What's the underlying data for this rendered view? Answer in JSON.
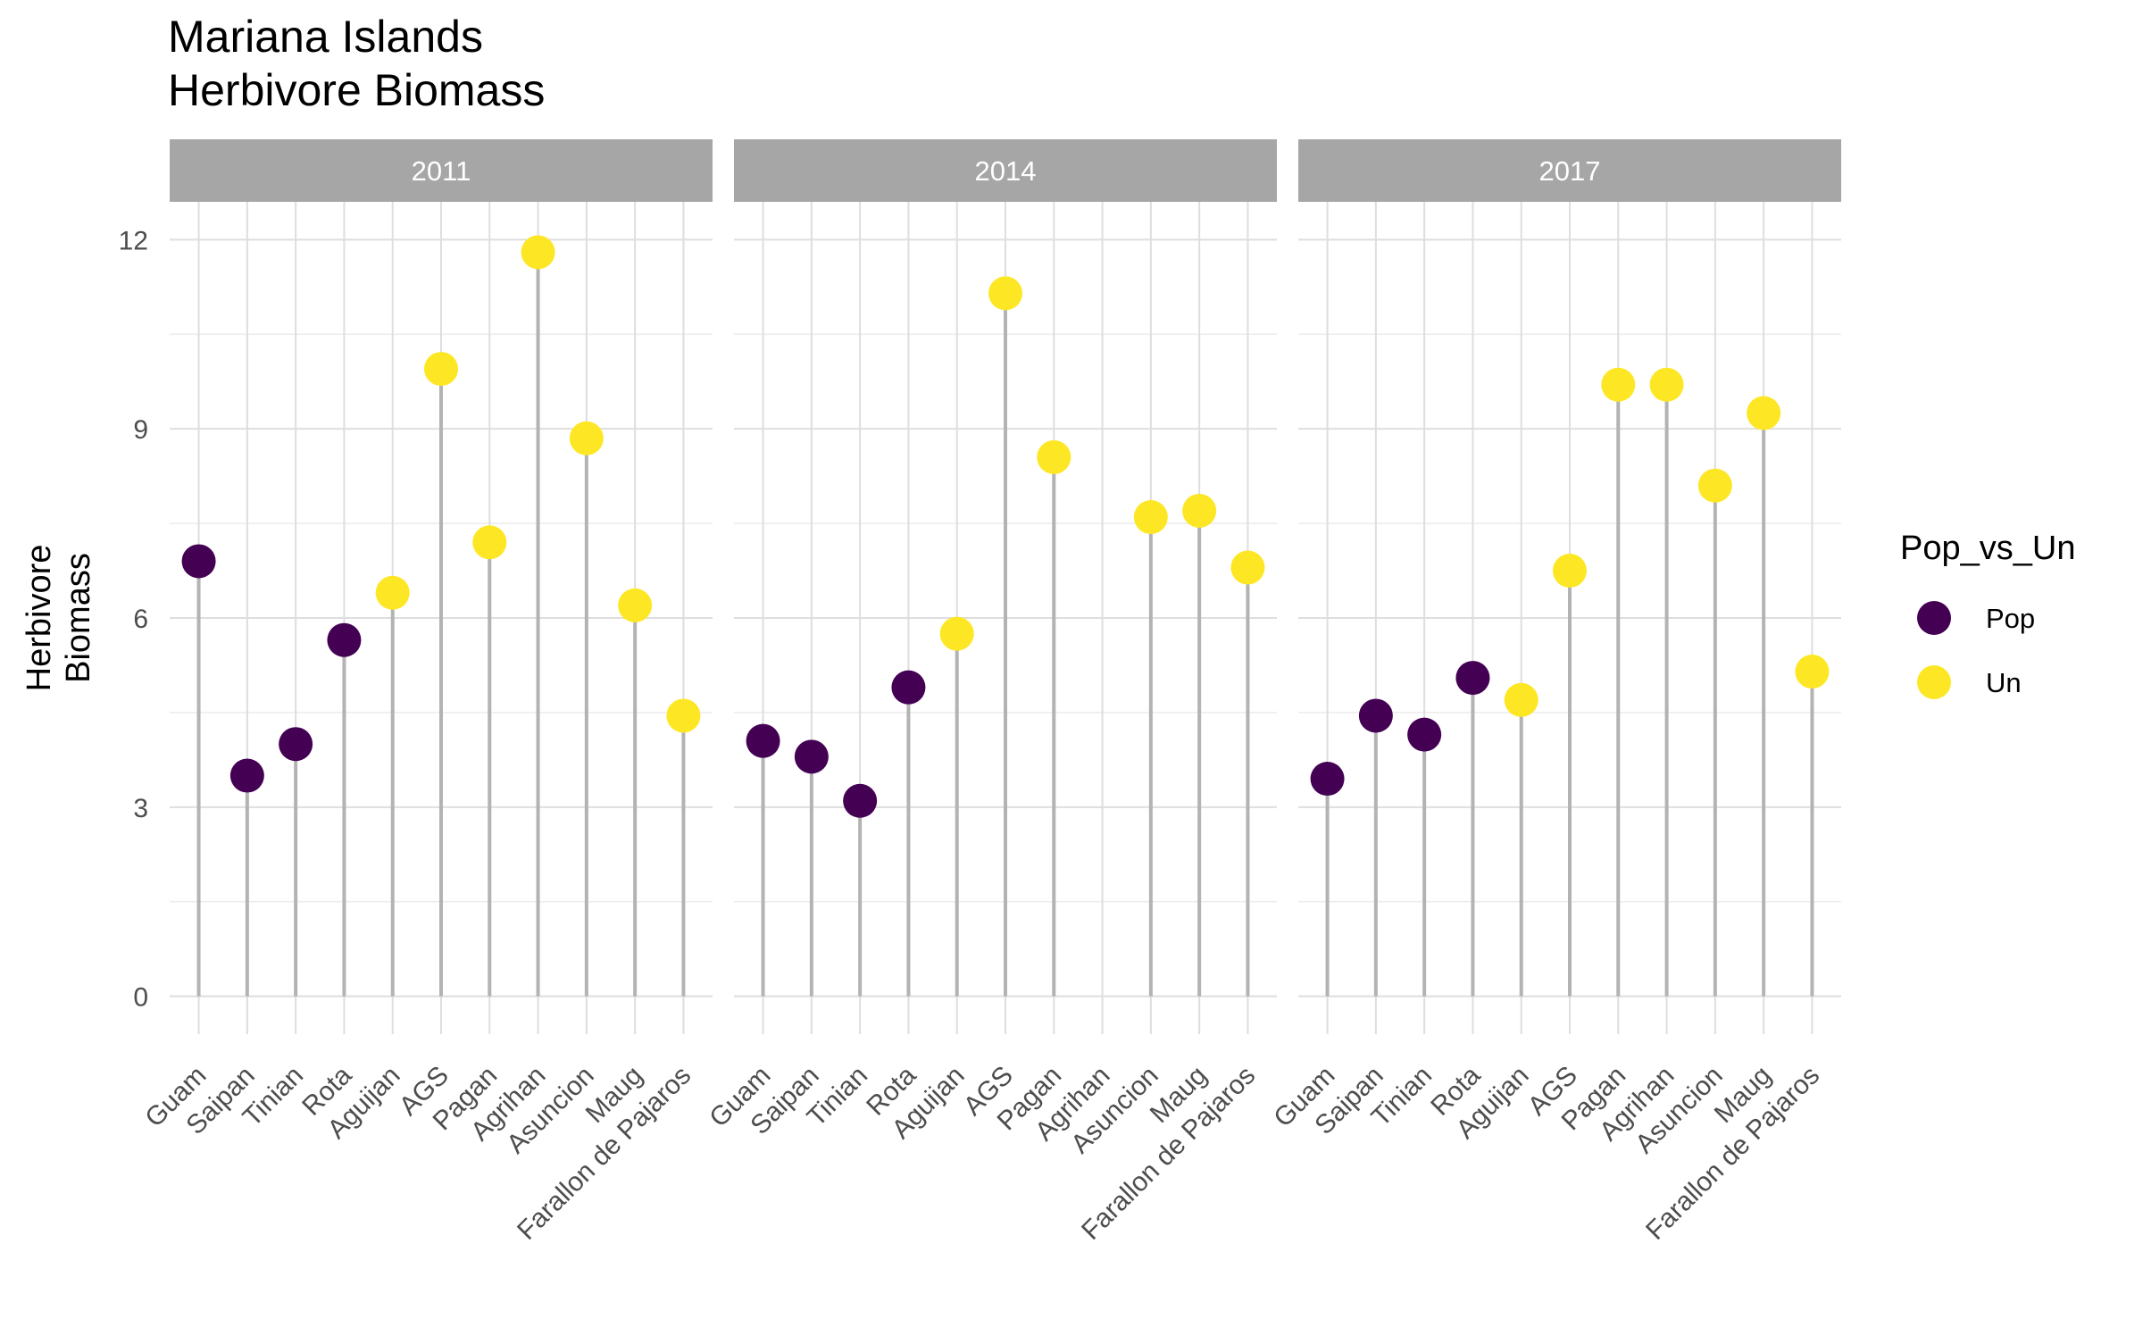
{
  "chart_data": {
    "type": "scatter",
    "title_lines": [
      "Mariana Islands",
      "Herbivore Biomass"
    ],
    "ylabel_lines": [
      "Herbivore",
      "Biomass"
    ],
    "xlabel": "",
    "ylim": [
      -0.6,
      12.6
    ],
    "yticks": [
      0,
      3,
      6,
      9,
      12
    ],
    "grid": true,
    "legend": {
      "title": "Pop_vs_Un",
      "position": "right",
      "items": [
        {
          "label": "Pop",
          "color": "#440154"
        },
        {
          "label": "Un",
          "color": "#FDE725"
        }
      ]
    },
    "categories": [
      "Guam",
      "Saipan",
      "Tinian",
      "Rota",
      "Aguijan",
      "AGS",
      "Pagan",
      "Agrihan",
      "Asuncion",
      "Maug",
      "Farallon de Pajaros"
    ],
    "stem_color": "#b3b3b3",
    "facets": [
      {
        "label": "2011",
        "points": [
          {
            "x": "Guam",
            "y": 6.9,
            "group": "Pop"
          },
          {
            "x": "Saipan",
            "y": 3.5,
            "group": "Pop"
          },
          {
            "x": "Tinian",
            "y": 4.0,
            "group": "Pop"
          },
          {
            "x": "Rota",
            "y": 5.65,
            "group": "Pop"
          },
          {
            "x": "Aguijan",
            "y": 6.4,
            "group": "Un"
          },
          {
            "x": "AGS",
            "y": 9.95,
            "group": "Un"
          },
          {
            "x": "Pagan",
            "y": 7.2,
            "group": "Un"
          },
          {
            "x": "Agrihan",
            "y": 11.8,
            "group": "Un"
          },
          {
            "x": "Asuncion",
            "y": 8.85,
            "group": "Un"
          },
          {
            "x": "Maug",
            "y": 6.2,
            "group": "Un"
          },
          {
            "x": "Farallon de Pajaros",
            "y": 4.45,
            "group": "Un"
          }
        ]
      },
      {
        "label": "2014",
        "points": [
          {
            "x": "Guam",
            "y": 4.05,
            "group": "Pop"
          },
          {
            "x": "Saipan",
            "y": 3.8,
            "group": "Pop"
          },
          {
            "x": "Tinian",
            "y": 3.1,
            "group": "Pop"
          },
          {
            "x": "Rota",
            "y": 4.9,
            "group": "Pop"
          },
          {
            "x": "Aguijan",
            "y": 5.75,
            "group": "Un"
          },
          {
            "x": "AGS",
            "y": 11.15,
            "group": "Un"
          },
          {
            "x": "Pagan",
            "y": 8.55,
            "group": "Un"
          },
          {
            "x": "Asuncion",
            "y": 7.6,
            "group": "Un"
          },
          {
            "x": "Maug",
            "y": 7.7,
            "group": "Un"
          },
          {
            "x": "Farallon de Pajaros",
            "y": 6.8,
            "group": "Un"
          }
        ]
      },
      {
        "label": "2017",
        "points": [
          {
            "x": "Guam",
            "y": 3.45,
            "group": "Pop"
          },
          {
            "x": "Saipan",
            "y": 4.45,
            "group": "Pop"
          },
          {
            "x": "Tinian",
            "y": 4.15,
            "group": "Pop"
          },
          {
            "x": "Rota",
            "y": 5.05,
            "group": "Pop"
          },
          {
            "x": "Aguijan",
            "y": 4.7,
            "group": "Un"
          },
          {
            "x": "AGS",
            "y": 6.75,
            "group": "Un"
          },
          {
            "x": "Pagan",
            "y": 9.7,
            "group": "Un"
          },
          {
            "x": "Agrihan",
            "y": 9.7,
            "group": "Un"
          },
          {
            "x": "Asuncion",
            "y": 8.1,
            "group": "Un"
          },
          {
            "x": "Maug",
            "y": 9.25,
            "group": "Un"
          },
          {
            "x": "Farallon de Pajaros",
            "y": 5.15,
            "group": "Un"
          }
        ]
      }
    ]
  }
}
